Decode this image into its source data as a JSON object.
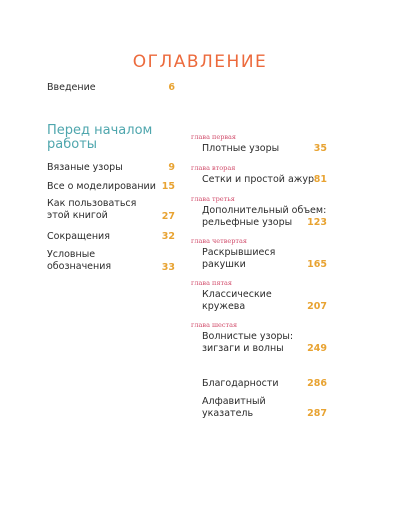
{
  "title": "ОГЛАВЛЕНИЕ",
  "intro": {
    "label": "Введение",
    "page": "6"
  },
  "section_heading": "Перед началом работы",
  "left_items": [
    {
      "label": "Вязаные узоры",
      "page": "9"
    },
    {
      "label": "Все о моделировании",
      "page": "15"
    },
    {
      "label": "Как пользоваться этой книгой",
      "page": "27"
    },
    {
      "label": "Сокращения",
      "page": "32"
    },
    {
      "label": "Условные обозначения",
      "page": "33"
    }
  ],
  "chapters": [
    {
      "chapter": "глава первая",
      "label": "Плотные узоры",
      "page": "35"
    },
    {
      "chapter": "глава вторая",
      "label": "Сетки и простой ажур",
      "page": "81"
    },
    {
      "chapter": "глава третья",
      "label": "Дополнительный объем: рельефные узоры",
      "page": "123"
    },
    {
      "chapter": "глава четвертая",
      "label": "Раскрывшиеся ракушки",
      "page": "165"
    },
    {
      "chapter": "глава пятая",
      "label": "Классические кружева",
      "page": "207"
    },
    {
      "chapter": "глава шестая",
      "label": "Волнистые узоры: зигзаги и волны",
      "page": "249"
    }
  ],
  "end_items": [
    {
      "label": "Благодарности",
      "page": "286"
    },
    {
      "label": "Алфавитный указатель",
      "page": "287"
    }
  ],
  "colors": {
    "title": "#ec6a3c",
    "heading": "#4ea6ad",
    "page_number": "#e8a332",
    "chapter_label": "#d14b6a"
  }
}
